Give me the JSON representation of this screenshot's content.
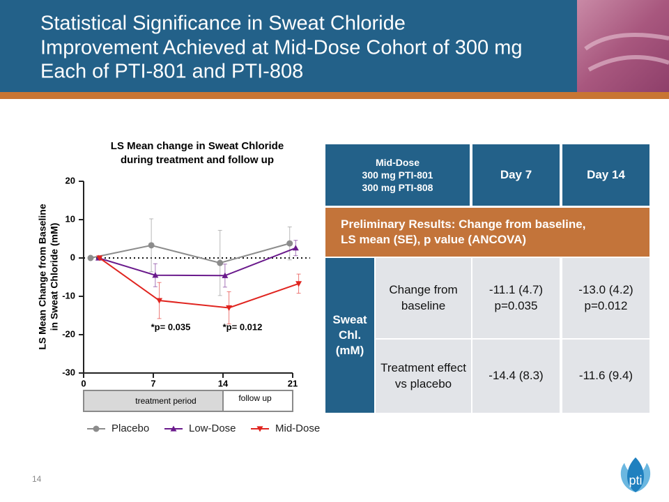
{
  "header": {
    "title": [
      "Statistical Significance in Sweat Chloride",
      "Improvement Achieved at Mid-Dose Cohort of 300 mg",
      "Each of PTI-801 and PTI-808"
    ]
  },
  "chart_data": {
    "type": "line",
    "title": [
      "LS Mean change in Sweat Chloride",
      "during treatment and follow up"
    ],
    "y_label": [
      "LS Mean Change from Baseline",
      "in Sweat Chloride (mM)"
    ],
    "xlim": [
      0,
      21
    ],
    "xticks": [
      0,
      7,
      14,
      21
    ],
    "ylim": [
      -30,
      20
    ],
    "yticks": [
      -30,
      -20,
      -10,
      0,
      10,
      20
    ],
    "zero_line": true,
    "series": [
      {
        "name": "Placebo",
        "color": "#8c8c8c",
        "marker": "circle",
        "x": [
          0.7,
          6.8,
          13.7,
          20.7
        ],
        "values": [
          0,
          3.3,
          -1.3,
          3.8
        ],
        "errors": [
          0,
          6.9,
          8.5,
          4.3
        ]
      },
      {
        "name": "Low-Dose",
        "color": "#6a1a8c",
        "marker": "triangle-up",
        "x": [
          1.5,
          7.2,
          14.2,
          21.3
        ],
        "values": [
          0,
          -4.5,
          -4.6,
          2.6
        ],
        "errors": [
          0,
          3.0,
          3.0,
          2.0
        ]
      },
      {
        "name": "Mid-Dose",
        "color": "#e0241f",
        "marker": "triangle-down",
        "x": [
          1.6,
          7.6,
          14.6,
          21.6
        ],
        "values": [
          0,
          -11.1,
          -13.0,
          -6.7
        ],
        "errors": [
          0,
          4.7,
          4.2,
          2.5
        ]
      }
    ],
    "annotations": [
      "*p= 0.035",
      "*p= 0.012"
    ],
    "periods": [
      "treatment period",
      "follow up"
    ]
  },
  "table": {
    "header": [
      [
        "Mid-Dose",
        "300 mg PTI-801",
        "300 mg PTI-808"
      ],
      [
        "Day 7"
      ],
      [
        "Day 14"
      ]
    ],
    "band": [
      "Preliminary Results: Change from baseline,",
      "LS mean (SE), p value (ANCOVA)"
    ],
    "group": [
      "Sweat",
      "Chl.",
      "(mM)"
    ],
    "rows": [
      [
        [
          "Change from",
          "baseline"
        ],
        [
          "-11.1 (4.7)",
          "p=0.035"
        ],
        [
          "-13.0 (4.2)",
          "p=0.012"
        ]
      ],
      [
        [
          "Treatment effect",
          "vs placebo"
        ],
        [
          "-14.4 (8.3)"
        ],
        [
          "-11.6 (9.4)"
        ]
      ]
    ]
  },
  "page_number": "14",
  "logo": "pti"
}
